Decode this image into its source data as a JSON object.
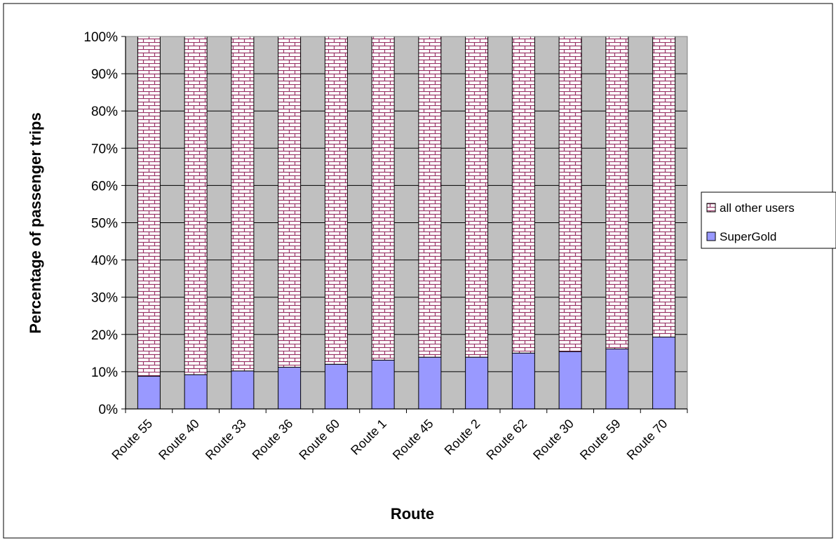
{
  "chart_data": {
    "type": "bar",
    "stacked": true,
    "percent_stacked": true,
    "categories": [
      "Route 55",
      "Route 40",
      "Route 33",
      "Route 36",
      "Route 60",
      "Route 1",
      "Route 45",
      "Route 2",
      "Route 62",
      "Route 30",
      "Route 59",
      "Route 70"
    ],
    "series": [
      {
        "name": "SuperGold",
        "values": [
          8.8,
          9.2,
          10.2,
          11.2,
          12.0,
          13.1,
          13.9,
          13.9,
          15.0,
          15.4,
          16.1,
          19.3
        ],
        "color": "#9999ff",
        "pattern": "solid"
      },
      {
        "name": "all other users",
        "values": [
          91.2,
          90.8,
          89.8,
          88.8,
          88.0,
          86.9,
          86.1,
          86.1,
          85.0,
          84.6,
          83.9,
          80.7
        ],
        "color": "#993366",
        "pattern": "brick"
      }
    ],
    "xlabel": "Route",
    "ylabel": "Percentage of passenger trips",
    "ylim": [
      0,
      100
    ],
    "yticks": [
      "0%",
      "10%",
      "20%",
      "30%",
      "40%",
      "50%",
      "60%",
      "70%",
      "80%",
      "90%",
      "100%"
    ],
    "grid": true,
    "plot_background": "#c0c0c0",
    "legend_position": "right",
    "legend_order": [
      "all other users",
      "SuperGold"
    ]
  }
}
